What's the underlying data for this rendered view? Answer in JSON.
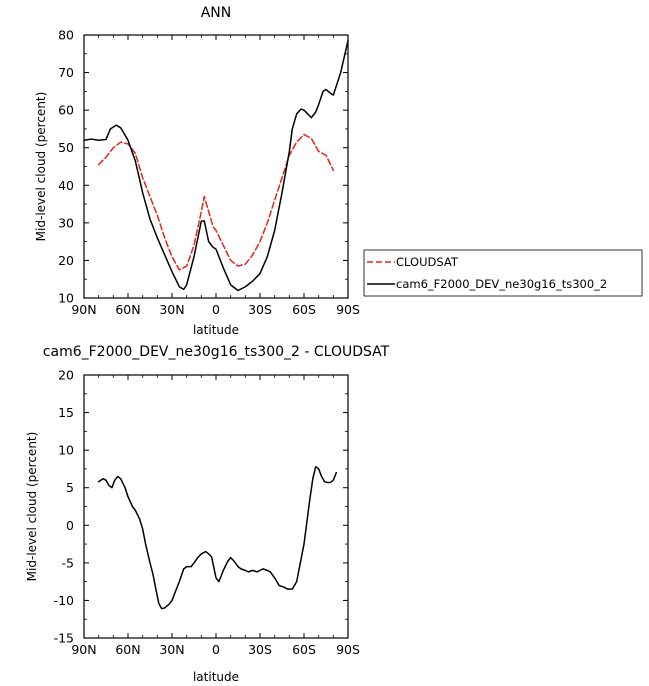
{
  "chart_data": [
    {
      "type": "line",
      "title": "ANN",
      "xlabel": "latitude",
      "ylabel": "Mid-level cloud (percent)",
      "xlim": [
        90,
        -90
      ],
      "ylim": [
        10,
        80
      ],
      "xticks": [
        90,
        60,
        30,
        0,
        -30,
        -60,
        -90
      ],
      "xtick_labels": [
        "90N",
        "60N",
        "30N",
        "0",
        "30S",
        "60S",
        "90S"
      ],
      "yticks": [
        10,
        20,
        30,
        40,
        50,
        60,
        70,
        80
      ],
      "ytick_labels": [
        "10",
        "20",
        "30",
        "40",
        "50",
        "60",
        "70",
        "80"
      ],
      "legend_position": "right",
      "series": [
        {
          "name": "CLOUDSAT",
          "color": "#e8221c",
          "dash": "dashed",
          "x": [
            80,
            75,
            70,
            65,
            60,
            55,
            50,
            45,
            40,
            35,
            30,
            25,
            20,
            15,
            10,
            8,
            5,
            2,
            0,
            -5,
            -10,
            -15,
            -20,
            -25,
            -30,
            -35,
            -40,
            -45,
            -50,
            -55,
            -60,
            -65,
            -70,
            -75,
            -80
          ],
          "y": [
            45.5,
            47.5,
            50,
            51.5,
            51,
            48.5,
            42,
            37,
            32,
            26,
            21,
            17.5,
            18.5,
            24,
            33,
            37,
            33,
            29,
            28,
            24,
            20,
            18.5,
            19,
            21.5,
            25,
            30,
            36,
            42,
            48,
            51.5,
            53.5,
            52.5,
            49,
            48,
            44
          ]
        },
        {
          "name": "cam6_F2000_DEV_ne30g16_ts300_2",
          "color": "#000000",
          "dash": "solid",
          "x": [
            90,
            85,
            80,
            75,
            72,
            68,
            65,
            60,
            55,
            50,
            45,
            40,
            35,
            30,
            25,
            22,
            20,
            15,
            10,
            8,
            5,
            2,
            0,
            -5,
            -10,
            -15,
            -20,
            -25,
            -30,
            -35,
            -40,
            -45,
            -50,
            -52,
            -55,
            -58,
            -60,
            -65,
            -68,
            -70,
            -73,
            -75,
            -78,
            -80,
            -85,
            -90
          ],
          "y": [
            52,
            52.3,
            52,
            52.2,
            55,
            56,
            55.3,
            52,
            46.5,
            38,
            31,
            26,
            21.5,
            17,
            13,
            12.3,
            13.5,
            21,
            30.5,
            30.5,
            25,
            23.5,
            23,
            18,
            13.5,
            12,
            13,
            14.5,
            16.5,
            21,
            28,
            38,
            49,
            55,
            59,
            60.3,
            60,
            58,
            59.5,
            61.5,
            65,
            65.5,
            64.5,
            64,
            70,
            78.5
          ]
        }
      ]
    },
    {
      "type": "line",
      "title": "cam6_F2000_DEV_ne30g16_ts300_2 - CLOUDSAT",
      "xlabel": "latitude",
      "ylabel": "Mid-level cloud (percent)",
      "xlim": [
        90,
        -90
      ],
      "ylim": [
        -15,
        20
      ],
      "xticks": [
        90,
        60,
        30,
        0,
        -30,
        -60,
        -90
      ],
      "xtick_labels": [
        "90N",
        "60N",
        "30N",
        "0",
        "30S",
        "60S",
        "90S"
      ],
      "yticks": [
        -15,
        -10,
        -5,
        0,
        5,
        10,
        15,
        20
      ],
      "ytick_labels": [
        "-15",
        "-10",
        "-5",
        "0",
        "5",
        "10",
        "15",
        "20"
      ],
      "series": [
        {
          "color": "#000000",
          "dash": "solid",
          "x": [
            80,
            77,
            75,
            73,
            71,
            69,
            67,
            65,
            62,
            60,
            57,
            55,
            52,
            50,
            48,
            45,
            43,
            41,
            39,
            37,
            35,
            32,
            30,
            28,
            25,
            22,
            20,
            17,
            15,
            12,
            10,
            7,
            5,
            3,
            0,
            -2,
            -5,
            -8,
            -10,
            -12,
            -15,
            -17,
            -20,
            -22,
            -25,
            -28,
            -30,
            -32,
            -35,
            -37,
            -40,
            -43,
            -46,
            -49,
            -52,
            -55,
            -57,
            -60,
            -62,
            -64,
            -66,
            -68,
            -70,
            -72,
            -74,
            -76,
            -78,
            -80,
            -82
          ],
          "y": [
            5.8,
            6.2,
            6,
            5.3,
            5,
            6,
            6.5,
            6.2,
            5,
            3.8,
            2.5,
            2,
            0.8,
            -0.5,
            -2.5,
            -5,
            -6.5,
            -8.5,
            -10.4,
            -11.1,
            -11,
            -10.5,
            -10,
            -9,
            -7.5,
            -5.8,
            -5.5,
            -5.5,
            -5,
            -4.2,
            -3.8,
            -3.5,
            -3.8,
            -4.2,
            -7,
            -7.5,
            -6,
            -4.8,
            -4.3,
            -4.7,
            -5.5,
            -5.8,
            -6,
            -6.2,
            -6,
            -6.2,
            -6,
            -5.8,
            -6,
            -6.2,
            -7,
            -8,
            -8.2,
            -8.5,
            -8.5,
            -7.5,
            -5.5,
            -2.5,
            0.5,
            3.5,
            6.2,
            7.8,
            7.5,
            6.5,
            5.8,
            5.7,
            5.7,
            6,
            7
          ]
        }
      ]
    }
  ]
}
